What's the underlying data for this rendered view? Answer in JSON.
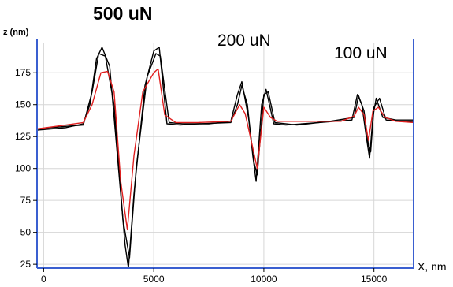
{
  "chart_data": {
    "type": "line",
    "ylabel": "z (nm)",
    "xlabel": "X, nm",
    "annotations": [
      {
        "text": "500 uN",
        "near_x": 3000
      },
      {
        "text": "200 uN",
        "near_x": 9800
      },
      {
        "text": "100 uN",
        "near_x": 14800
      }
    ],
    "xlim": [
      -300,
      16800
    ],
    "ylim": [
      22,
      198
    ],
    "xticks": [
      0,
      5000,
      10000,
      15000
    ],
    "yticks": [
      25,
      50,
      75,
      100,
      125,
      150,
      175
    ],
    "grid": true,
    "series": [
      {
        "color": "#e02020",
        "points": [
          [
            -300,
            131
          ],
          [
            1000,
            134
          ],
          [
            1800,
            136
          ],
          [
            2200,
            150
          ],
          [
            2600,
            175
          ],
          [
            2900,
            176
          ],
          [
            3200,
            160
          ],
          [
            3500,
            90
          ],
          [
            3800,
            52
          ],
          [
            4100,
            110
          ],
          [
            4500,
            160
          ],
          [
            5000,
            175
          ],
          [
            5200,
            178
          ],
          [
            5500,
            142
          ],
          [
            6000,
            136
          ],
          [
            7000,
            136
          ],
          [
            8500,
            137
          ],
          [
            8900,
            150
          ],
          [
            9150,
            143
          ],
          [
            9450,
            120
          ],
          [
            9700,
            100
          ],
          [
            10000,
            148
          ],
          [
            10300,
            140
          ],
          [
            10600,
            137
          ],
          [
            12000,
            137
          ],
          [
            13500,
            137
          ],
          [
            14100,
            141
          ],
          [
            14300,
            148
          ],
          [
            14550,
            142
          ],
          [
            14750,
            122
          ],
          [
            14950,
            145
          ],
          [
            15200,
            148
          ],
          [
            15500,
            140
          ],
          [
            16000,
            137
          ],
          [
            16800,
            136
          ]
        ]
      },
      {
        "color": "#000000",
        "points": [
          [
            -300,
            130
          ],
          [
            1000,
            132
          ],
          [
            1800,
            135
          ],
          [
            2100,
            150
          ],
          [
            2400,
            186
          ],
          [
            2650,
            195
          ],
          [
            3000,
            180
          ],
          [
            3400,
            100
          ],
          [
            3700,
            40
          ],
          [
            3850,
            22
          ],
          [
            4100,
            80
          ],
          [
            4600,
            165
          ],
          [
            5000,
            192
          ],
          [
            5250,
            195
          ],
          [
            5600,
            135
          ],
          [
            6200,
            134
          ],
          [
            7000,
            135
          ],
          [
            8500,
            136
          ],
          [
            8800,
            150
          ],
          [
            9000,
            165
          ],
          [
            9250,
            150
          ],
          [
            9500,
            110
          ],
          [
            9650,
            90
          ],
          [
            9900,
            150
          ],
          [
            10100,
            162
          ],
          [
            10450,
            135
          ],
          [
            11000,
            134
          ],
          [
            12500,
            136
          ],
          [
            14000,
            138
          ],
          [
            14250,
            158
          ],
          [
            14450,
            150
          ],
          [
            14650,
            125
          ],
          [
            14800,
            108
          ],
          [
            14950,
            140
          ],
          [
            15100,
            155
          ],
          [
            15400,
            140
          ],
          [
            16000,
            138
          ],
          [
            16800,
            138
          ]
        ]
      },
      {
        "color": "#000000",
        "points": [
          [
            -300,
            131
          ],
          [
            1000,
            133
          ],
          [
            1800,
            134
          ],
          [
            2200,
            160
          ],
          [
            2500,
            190
          ],
          [
            2800,
            188
          ],
          [
            3200,
            150
          ],
          [
            3600,
            60
          ],
          [
            3900,
            30
          ],
          [
            4200,
            100
          ],
          [
            4700,
            172
          ],
          [
            5100,
            190
          ],
          [
            5300,
            188
          ],
          [
            5700,
            136
          ],
          [
            6300,
            135
          ],
          [
            7500,
            135
          ],
          [
            8500,
            137
          ],
          [
            8800,
            158
          ],
          [
            9000,
            168
          ],
          [
            9300,
            140
          ],
          [
            9550,
            105
          ],
          [
            9700,
            95
          ],
          [
            10000,
            158
          ],
          [
            10200,
            160
          ],
          [
            10500,
            136
          ],
          [
            11500,
            134
          ],
          [
            13000,
            137
          ],
          [
            14100,
            140
          ],
          [
            14300,
            157
          ],
          [
            14550,
            145
          ],
          [
            14750,
            118
          ],
          [
            14850,
            113
          ],
          [
            15000,
            148
          ],
          [
            15250,
            155
          ],
          [
            15550,
            138
          ],
          [
            16200,
            137
          ],
          [
            16800,
            137
          ]
        ]
      }
    ]
  }
}
